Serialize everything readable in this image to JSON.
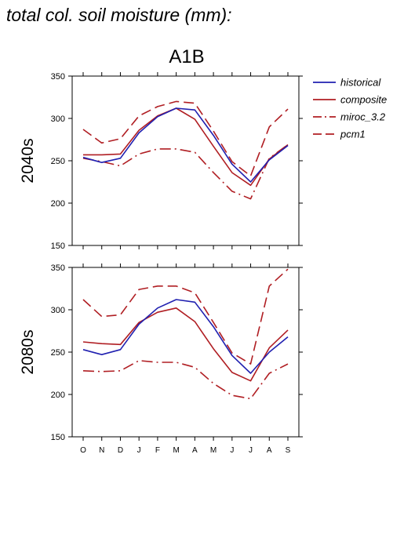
{
  "figure_title": "total col. soil moisture (mm):",
  "scenario": "A1B",
  "legend": [
    {
      "label": "historical",
      "color": "#2020b0",
      "dash": "solid"
    },
    {
      "label": "composite",
      "color": "#b01e23",
      "dash": "solid"
    },
    {
      "label": "miroc_3.2",
      "color": "#b01e23",
      "dash": "dashdot"
    },
    {
      "label": "pcm1",
      "color": "#b01e23",
      "dash": "longdash"
    }
  ],
  "chart_data": [
    {
      "type": "line",
      "panel_label": "2040s",
      "categories": [
        "O",
        "N",
        "D",
        "J",
        "F",
        "M",
        "A",
        "M",
        "J",
        "J",
        "A",
        "S"
      ],
      "ylim": [
        150,
        350
      ],
      "yticks": [
        150,
        200,
        250,
        300,
        350
      ],
      "series": [
        {
          "name": "historical",
          "values": [
            254,
            248,
            253,
            283,
            302,
            312,
            310,
            280,
            246,
            225,
            251,
            268
          ]
        },
        {
          "name": "composite",
          "values": [
            257,
            257,
            258,
            286,
            303,
            312,
            299,
            267,
            236,
            221,
            252,
            269
          ]
        },
        {
          "name": "miroc_3.2",
          "values": [
            253,
            249,
            244,
            258,
            264,
            264,
            260,
            236,
            214,
            205,
            253,
            269
          ]
        },
        {
          "name": "pcm1",
          "values": [
            287,
            271,
            276,
            303,
            314,
            320,
            318,
            285,
            249,
            232,
            290,
            311
          ]
        }
      ]
    },
    {
      "type": "line",
      "panel_label": "2080s",
      "categories": [
        "O",
        "N",
        "D",
        "J",
        "F",
        "M",
        "A",
        "M",
        "J",
        "J",
        "A",
        "S"
      ],
      "ylim": [
        150,
        350
      ],
      "yticks": [
        150,
        200,
        250,
        300,
        350
      ],
      "series": [
        {
          "name": "historical",
          "values": [
            253,
            247,
            253,
            283,
            302,
            312,
            309,
            280,
            246,
            225,
            250,
            268
          ]
        },
        {
          "name": "composite",
          "values": [
            262,
            260,
            259,
            285,
            297,
            302,
            286,
            254,
            226,
            216,
            255,
            276
          ]
        },
        {
          "name": "miroc_3.2",
          "values": [
            228,
            227,
            228,
            240,
            238,
            238,
            232,
            213,
            199,
            195,
            225,
            236
          ]
        },
        {
          "name": "pcm1",
          "values": [
            312,
            292,
            294,
            324,
            328,
            328,
            320,
            285,
            249,
            236,
            328,
            348
          ]
        }
      ]
    }
  ]
}
